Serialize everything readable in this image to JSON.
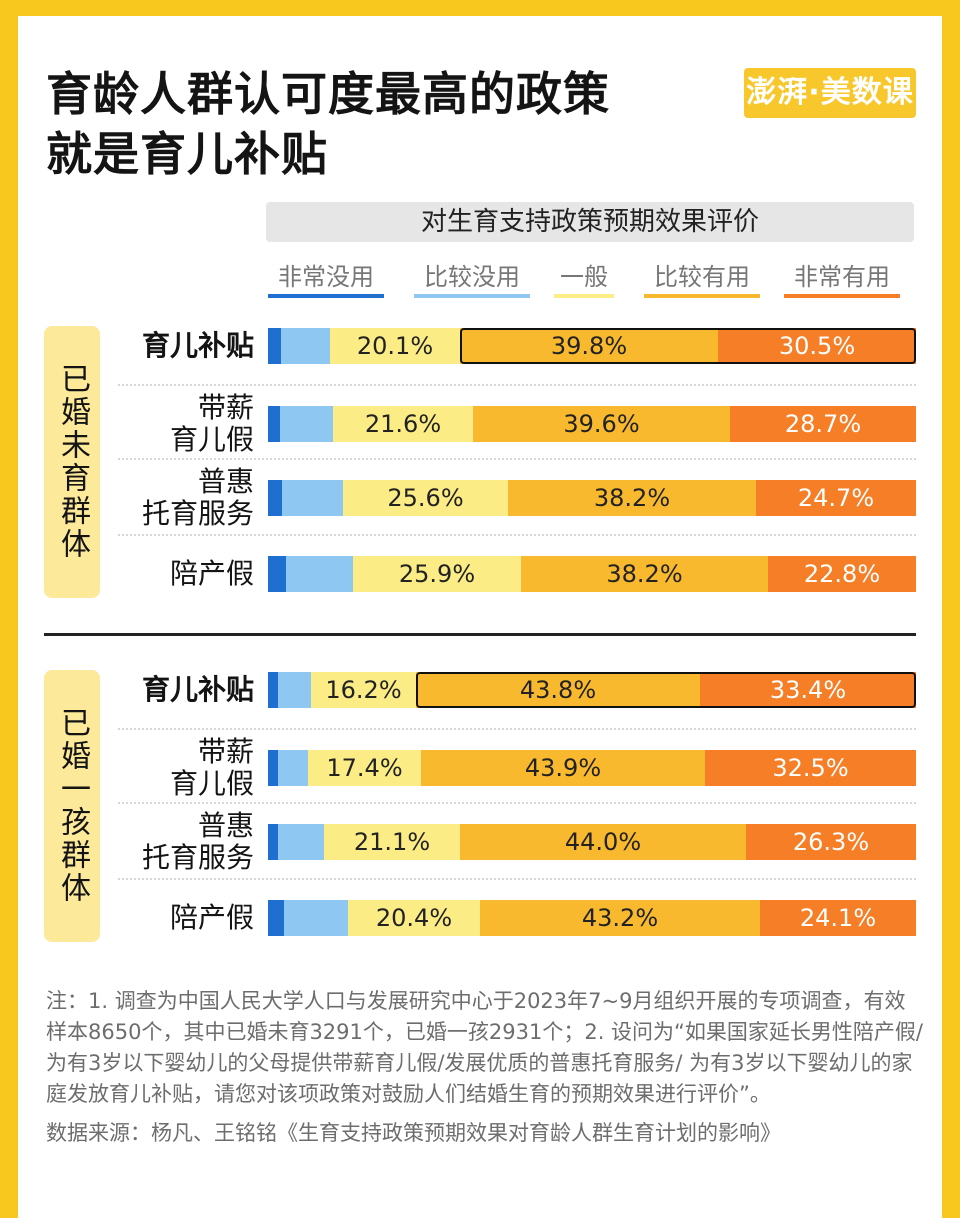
{
  "title_line1": "育龄人群认可度最高的政策",
  "title_line2": "就是育儿补贴",
  "logo_text": "澎湃·美数课",
  "notes": "注：1.  调查为中国人民大学人口与发展研究中心于2023年7~9月组织开展的专项调查，有效样本8650个，其中已婚未育3291个，已婚一孩2931个；2.  设问为“如果国家延长男性陪产假/为有3岁以下婴幼儿的父母提供带薪育儿假/发展优质的普惠托育服务/ 为有3岁以下婴幼儿的家庭发放育儿补贴，请您对该项政策对鼓励人们结婚生育的预期效果进行评价”。",
  "source": "数据来源：杨凡、王铭铭《生育支持政策预期效果对育龄人群生育计划的影响》",
  "colors": {
    "very_useless": "#1f6fd1",
    "quite_useless": "#8ec8f2",
    "neutral": "#fcec86",
    "quite_useful": "#f8b92e",
    "very_useful": "#f57e26"
  },
  "chart_data": {
    "type": "bar",
    "orientation": "horizontal",
    "stacked": true,
    "title": "对生育支持政策预期效果评价",
    "legend": [
      "非常没用",
      "比较没用",
      "一般",
      "比较有用",
      "非常有用"
    ],
    "legend_placement": "top",
    "groups": [
      {
        "name": "已婚未育群体",
        "rows": [
          {
            "policy_lines": [
              "育儿补贴"
            ],
            "bold": true,
            "highlight": true,
            "values": [
              2.0,
              7.6,
              20.1,
              39.8,
              30.5
            ],
            "labels": [
              "",
              "",
              "20.1%",
              "39.8%",
              "30.5%"
            ]
          },
          {
            "policy_lines": [
              "带薪",
              "育儿假"
            ],
            "bold": false,
            "highlight": false,
            "values": [
              1.9,
              8.2,
              21.6,
              39.6,
              28.7
            ],
            "labels": [
              "",
              "",
              "21.6%",
              "39.6%",
              "28.7%"
            ]
          },
          {
            "policy_lines": [
              "普惠",
              "托育服务"
            ],
            "bold": false,
            "highlight": false,
            "values": [
              2.2,
              9.3,
              25.6,
              38.2,
              24.7
            ],
            "labels": [
              "",
              "",
              "25.6%",
              "38.2%",
              "24.7%"
            ]
          },
          {
            "policy_lines": [
              "陪产假"
            ],
            "bold": false,
            "highlight": false,
            "values": [
              2.8,
              10.3,
              25.9,
              38.2,
              22.8
            ],
            "labels": [
              "",
              "",
              "25.9%",
              "38.2%",
              "22.8%"
            ]
          }
        ]
      },
      {
        "name": "已婚一孩群体",
        "rows": [
          {
            "policy_lines": [
              "育儿补贴"
            ],
            "bold": true,
            "highlight": true,
            "values": [
              1.6,
              5.0,
              16.2,
              43.8,
              33.4
            ],
            "labels": [
              "",
              "",
              "16.2%",
              "43.8%",
              "33.4%"
            ]
          },
          {
            "policy_lines": [
              "带薪",
              "育儿假"
            ],
            "bold": false,
            "highlight": false,
            "values": [
              1.5,
              4.7,
              17.4,
              43.9,
              32.5
            ],
            "labels": [
              "",
              "",
              "17.4%",
              "43.9%",
              "32.5%"
            ]
          },
          {
            "policy_lines": [
              "普惠",
              "托育服务"
            ],
            "bold": false,
            "highlight": false,
            "values": [
              1.6,
              7.0,
              21.1,
              44.0,
              26.3
            ],
            "labels": [
              "",
              "",
              "21.1%",
              "44.0%",
              "26.3%"
            ]
          },
          {
            "policy_lines": [
              "陪产假"
            ],
            "bold": false,
            "highlight": false,
            "values": [
              2.4,
              9.9,
              20.4,
              43.2,
              24.1
            ],
            "labels": [
              "",
              "",
              "20.4%",
              "43.2%",
              "24.1%"
            ]
          }
        ]
      }
    ]
  }
}
